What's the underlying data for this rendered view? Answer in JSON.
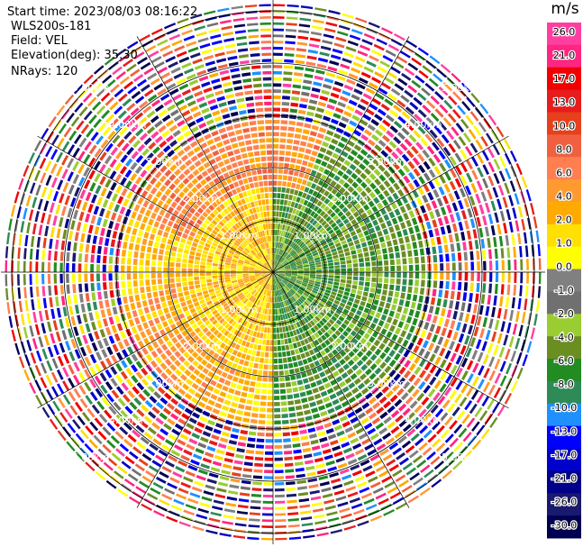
{
  "header": {
    "start_time": "Start time: 2023/08/03 08:16:22",
    "instrument": "WLS200s-181",
    "field": "Field: VEL",
    "elevation": "Elevation(deg): 35.30",
    "nrays": "NRays: 120"
  },
  "colorbar": {
    "unit": "m/s",
    "ticks": [
      "26.0",
      "21.0",
      "17.0",
      "13.0",
      "10.0",
      "8.0",
      "6.0",
      "4.0",
      "2.0",
      "1.0",
      "0.0",
      "-1.0",
      "-2.0",
      "-4.0",
      "-6.0",
      "-8.0",
      "-10.0",
      "-13.0",
      "-17.0",
      "-21.0",
      "-26.0",
      "-30.0"
    ],
    "colors": [
      "#ff3fa0",
      "#ff2580",
      "#f00000",
      "#e81c1c",
      "#e6401c",
      "#f06040",
      "#ff7f50",
      "#ff9a30",
      "#ffaa00",
      "#ffe000",
      "#ffff00",
      "#808080",
      "#707070",
      "#9acd32",
      "#6b8e23",
      "#228b22",
      "#2e8b57",
      "#1e90ff",
      "#0000ff",
      "#0000cd",
      "#00008b",
      "#191970",
      "#000050"
    ]
  },
  "chart_data": {
    "type": "heatmap",
    "projection": "polar PPI",
    "field": "VEL",
    "units": "m/s",
    "nrays": 120,
    "elevation_deg": 35.3,
    "vmin": -30.0,
    "vmax": 26.0,
    "range_ring_labels": [
      "1.00km",
      "2.00km",
      "3.00km",
      "4.00km",
      "5.00km"
    ],
    "range_rings_km": [
      1,
      2,
      3,
      4,
      5
    ],
    "description_sectors": [
      {
        "azimuth_deg_from": 180,
        "azimuth_deg_to": 360,
        "dominant_velocity_ms": 4.0
      },
      {
        "azimuth_deg_from": 0,
        "azimuth_deg_to": 180,
        "dominant_velocity_ms": -4.0
      }
    ]
  }
}
